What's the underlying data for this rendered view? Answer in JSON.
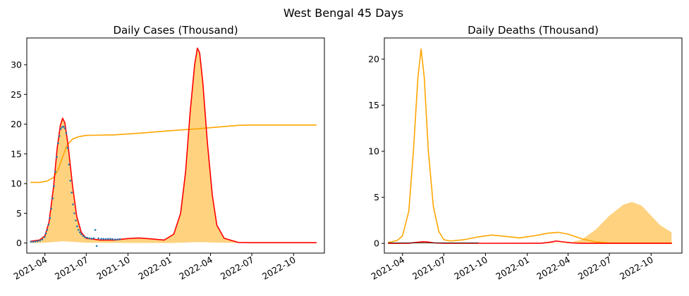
{
  "figure": {
    "suptitle": "West Bengal 45 Days"
  },
  "colors": {
    "model_cases": "#ff0000",
    "cumulative": "#ffa500",
    "fill": "#ffa500",
    "observed": "#1f77b4"
  },
  "chart_data": [
    {
      "type": "line",
      "title": "Daily Cases (Thousand)",
      "xlabel": "",
      "ylabel": "",
      "x_axis": "date",
      "xlim": [
        "2021-02-20",
        "2022-12-08"
      ],
      "ylim": [
        -1.7,
        34.5
      ],
      "xticks": [
        "2021-04-01",
        "2021-07-01",
        "2021-10-01",
        "2022-01-01",
        "2022-04-01",
        "2022-07-01",
        "2022-10-01"
      ],
      "xtick_labels": [
        "2021-04",
        "2021-07",
        "2021-10",
        "2022-01",
        "2022-04",
        "2022-07",
        "2022-10"
      ],
      "yticks": [
        0,
        5,
        10,
        15,
        20,
        25,
        30
      ],
      "ytick_labels": [
        "0",
        "5",
        "10",
        "15",
        "20",
        "25",
        "30"
      ],
      "grid": false,
      "series": [
        {
          "kind": "fill",
          "color": "#ffa500",
          "upper": [
            [
              "2021-03-01",
              0.3
            ],
            [
              "2021-03-20",
              0.5
            ],
            [
              "2021-04-01",
              1.2
            ],
            [
              "2021-04-10",
              3.5
            ],
            [
              "2021-04-20",
              9.5
            ],
            [
              "2021-04-28",
              16
            ],
            [
              "2021-05-05",
              19.8
            ],
            [
              "2021-05-10",
              21.0
            ],
            [
              "2021-05-15",
              20.2
            ],
            [
              "2021-05-22",
              16.5
            ],
            [
              "2021-06-01",
              9.5
            ],
            [
              "2021-06-10",
              4.5
            ],
            [
              "2021-06-20",
              1.8
            ],
            [
              "2021-07-01",
              0.8
            ],
            [
              "2021-08-01",
              0.5
            ],
            [
              "2021-09-01",
              0.5
            ],
            [
              "2021-10-01",
              0.75
            ],
            [
              "2021-10-25",
              0.85
            ],
            [
              "2021-11-20",
              0.7
            ],
            [
              "2021-12-20",
              0.5
            ],
            [
              "2022-01-10",
              1.5
            ],
            [
              "2022-01-25",
              5
            ],
            [
              "2022-02-05",
              12
            ],
            [
              "2022-02-15",
              22
            ],
            [
              "2022-02-25",
              30
            ],
            [
              "2022-03-03",
              32.8
            ],
            [
              "2022-03-08",
              32
            ],
            [
              "2022-03-15",
              27
            ],
            [
              "2022-03-25",
              17
            ],
            [
              "2022-04-05",
              8
            ],
            [
              "2022-04-15",
              3
            ],
            [
              "2022-05-01",
              0.8
            ],
            [
              "2022-06-01",
              0.1
            ],
            [
              "2022-07-01",
              0.05
            ],
            [
              "2022-11-20",
              0.05
            ]
          ],
          "lower": [
            [
              "2021-03-01",
              0.0
            ],
            [
              "2021-04-01",
              0.05
            ],
            [
              "2021-05-10",
              0.3
            ],
            [
              "2021-06-10",
              0.15
            ],
            [
              "2021-07-01",
              0.05
            ],
            [
              "2022-01-01",
              0.0
            ],
            [
              "2022-03-03",
              0.15
            ],
            [
              "2022-05-01",
              0.05
            ],
            [
              "2022-11-20",
              0.0
            ]
          ]
        },
        {
          "kind": "line",
          "color": "#ffa500",
          "points": [
            [
              "2021-03-01",
              10.2
            ],
            [
              "2021-03-20",
              10.2
            ],
            [
              "2021-04-05",
              10.4
            ],
            [
              "2021-04-20",
              11.0
            ],
            [
              "2021-05-01",
              12.5
            ],
            [
              "2021-05-10",
              14.5
            ],
            [
              "2021-05-20",
              16.5
            ],
            [
              "2021-06-01",
              17.5
            ],
            [
              "2021-06-15",
              17.9
            ],
            [
              "2021-07-01",
              18.1
            ],
            [
              "2021-09-01",
              18.2
            ],
            [
              "2021-11-01",
              18.5
            ],
            [
              "2022-01-01",
              18.9
            ],
            [
              "2022-03-01",
              19.2
            ],
            [
              "2022-04-15",
              19.5
            ],
            [
              "2022-06-01",
              19.8
            ],
            [
              "2022-07-01",
              19.85
            ],
            [
              "2022-11-20",
              19.85
            ]
          ]
        },
        {
          "kind": "line",
          "color": "#ff0000",
          "points": [
            [
              "2021-03-01",
              0.3
            ],
            [
              "2021-03-20",
              0.5
            ],
            [
              "2021-04-01",
              1.2
            ],
            [
              "2021-04-10",
              3.5
            ],
            [
              "2021-04-20",
              9.5
            ],
            [
              "2021-04-28",
              16
            ],
            [
              "2021-05-05",
              19.8
            ],
            [
              "2021-05-10",
              21.0
            ],
            [
              "2021-05-15",
              20.2
            ],
            [
              "2021-05-22",
              16.5
            ],
            [
              "2021-06-01",
              9.5
            ],
            [
              "2021-06-10",
              4.5
            ],
            [
              "2021-06-20",
              1.8
            ],
            [
              "2021-07-01",
              0.8
            ],
            [
              "2021-08-01",
              0.5
            ],
            [
              "2021-09-01",
              0.5
            ],
            [
              "2021-10-01",
              0.75
            ],
            [
              "2021-10-25",
              0.85
            ],
            [
              "2021-11-20",
              0.7
            ],
            [
              "2021-12-20",
              0.5
            ],
            [
              "2022-01-10",
              1.5
            ],
            [
              "2022-01-25",
              5
            ],
            [
              "2022-02-05",
              12
            ],
            [
              "2022-02-15",
              22
            ],
            [
              "2022-02-25",
              30
            ],
            [
              "2022-03-03",
              32.8
            ],
            [
              "2022-03-08",
              32
            ],
            [
              "2022-03-15",
              27
            ],
            [
              "2022-03-25",
              17
            ],
            [
              "2022-04-05",
              8
            ],
            [
              "2022-04-15",
              3
            ],
            [
              "2022-05-01",
              0.8
            ],
            [
              "2022-06-01",
              0.1
            ],
            [
              "2022-07-01",
              0.05
            ],
            [
              "2022-11-20",
              0.05
            ]
          ]
        },
        {
          "kind": "scatter",
          "color": "#1f77b4",
          "points": [
            [
              "2021-03-01",
              0.2
            ],
            [
              "2021-03-06",
              0.2
            ],
            [
              "2021-03-11",
              0.25
            ],
            [
              "2021-03-16",
              0.3
            ],
            [
              "2021-03-21",
              0.4
            ],
            [
              "2021-03-26",
              0.6
            ],
            [
              "2021-03-31",
              1.0
            ],
            [
              "2021-04-03",
              1.6
            ],
            [
              "2021-04-06",
              2.2
            ],
            [
              "2021-04-09",
              3.1
            ],
            [
              "2021-04-12",
              4.2
            ],
            [
              "2021-04-15",
              5.8
            ],
            [
              "2021-04-18",
              7.5
            ],
            [
              "2021-04-21",
              9.6
            ],
            [
              "2021-04-24",
              12.0
            ],
            [
              "2021-04-27",
              14.5
            ],
            [
              "2021-04-30",
              16.8
            ],
            [
              "2021-05-03",
              18.0
            ],
            [
              "2021-05-06",
              19.2
            ],
            [
              "2021-05-09",
              19.5
            ],
            [
              "2021-05-12",
              19.6
            ],
            [
              "2021-05-15",
              19.3
            ],
            [
              "2021-05-18",
              18.5
            ],
            [
              "2021-05-21",
              16.0
            ],
            [
              "2021-05-24",
              13.2
            ],
            [
              "2021-05-27",
              10.5
            ],
            [
              "2021-05-30",
              8.5
            ],
            [
              "2021-06-02",
              6.5
            ],
            [
              "2021-06-05",
              5.0
            ],
            [
              "2021-06-08",
              3.8
            ],
            [
              "2021-06-11",
              2.8
            ],
            [
              "2021-06-14",
              2.2
            ],
            [
              "2021-06-17",
              1.8
            ],
            [
              "2021-06-20",
              1.5
            ],
            [
              "2021-06-24",
              1.2
            ],
            [
              "2021-06-28",
              1.0
            ],
            [
              "2021-07-03",
              0.9
            ],
            [
              "2021-07-08",
              0.8
            ],
            [
              "2021-07-13",
              0.75
            ],
            [
              "2021-07-18",
              0.8
            ],
            [
              "2021-07-21",
              2.2
            ],
            [
              "2021-07-24",
              -0.5
            ],
            [
              "2021-07-28",
              0.8
            ],
            [
              "2021-08-03",
              0.7
            ],
            [
              "2021-08-08",
              0.7
            ],
            [
              "2021-08-13",
              0.65
            ],
            [
              "2021-08-18",
              0.7
            ],
            [
              "2021-08-23",
              0.7
            ],
            [
              "2021-08-28",
              0.65
            ],
            [
              "2021-09-03",
              0.6
            ],
            [
              "2021-09-08",
              0.6
            ],
            [
              "2021-09-13",
              0.65
            ]
          ]
        }
      ]
    },
    {
      "type": "line",
      "title": "Daily Deaths (Thousand)",
      "xlabel": "",
      "ylabel": "",
      "x_axis": "date",
      "xlim": [
        "2021-02-20",
        "2022-12-08"
      ],
      "ylim": [
        -1.06,
        22.3
      ],
      "xticks": [
        "2021-04-01",
        "2021-07-01",
        "2021-10-01",
        "2022-01-01",
        "2022-04-01",
        "2022-07-01",
        "2022-10-01"
      ],
      "xtick_labels": [
        "2021-04",
        "2021-07",
        "2021-10",
        "2022-01",
        "2022-04",
        "2022-07",
        "2022-10"
      ],
      "yticks": [
        0,
        5,
        10,
        15,
        20
      ],
      "ytick_labels": [
        "0",
        "5",
        "10",
        "15",
        "20"
      ],
      "grid": false,
      "series": [
        {
          "kind": "fill",
          "color": "#ffa500",
          "upper": [
            [
              "2021-03-01",
              0.05
            ],
            [
              "2022-04-01",
              0.05
            ],
            [
              "2022-05-01",
              0.4
            ],
            [
              "2022-06-01",
              1.5
            ],
            [
              "2022-07-01",
              3.0
            ],
            [
              "2022-08-01",
              4.2
            ],
            [
              "2022-08-20",
              4.5
            ],
            [
              "2022-09-10",
              4.1
            ],
            [
              "2022-10-01",
              3.0
            ],
            [
              "2022-10-20",
              2.0
            ],
            [
              "2022-11-15",
              1.2
            ]
          ],
          "lower": [
            [
              "2021-03-01",
              0.0
            ],
            [
              "2022-11-15",
              0.0
            ]
          ]
        },
        {
          "kind": "line",
          "color": "#ffa500",
          "points": [
            [
              "2021-03-01",
              0.1
            ],
            [
              "2021-03-20",
              0.3
            ],
            [
              "2021-04-01",
              0.8
            ],
            [
              "2021-04-15",
              3.5
            ],
            [
              "2021-04-25",
              10
            ],
            [
              "2021-05-05",
              18
            ],
            [
              "2021-05-12",
              21.1
            ],
            [
              "2021-05-19",
              18
            ],
            [
              "2021-05-28",
              10
            ],
            [
              "2021-06-08",
              4
            ],
            [
              "2021-06-20",
              1.3
            ],
            [
              "2021-07-01",
              0.4
            ],
            [
              "2021-07-15",
              0.25
            ],
            [
              "2021-08-15",
              0.4
            ],
            [
              "2021-09-15",
              0.7
            ],
            [
              "2021-10-15",
              0.9
            ],
            [
              "2021-11-15",
              0.75
            ],
            [
              "2021-12-15",
              0.6
            ],
            [
              "2022-01-15",
              0.8
            ],
            [
              "2022-02-15",
              1.1
            ],
            [
              "2022-03-10",
              1.2
            ],
            [
              "2022-04-01",
              1.0
            ],
            [
              "2022-05-01",
              0.5
            ],
            [
              "2022-06-01",
              0.15
            ],
            [
              "2022-07-01",
              0.05
            ],
            [
              "2022-11-15",
              0.05
            ]
          ]
        },
        {
          "kind": "line",
          "color": "#ff0000",
          "points": [
            [
              "2021-03-01",
              0.0
            ],
            [
              "2021-04-15",
              0.02
            ],
            [
              "2021-05-05",
              0.12
            ],
            [
              "2021-05-15",
              0.18
            ],
            [
              "2021-05-25",
              0.15
            ],
            [
              "2021-06-10",
              0.05
            ],
            [
              "2021-07-01",
              0.02
            ],
            [
              "2021-10-01",
              0.01
            ],
            [
              "2022-02-01",
              0.02
            ],
            [
              "2022-02-25",
              0.15
            ],
            [
              "2022-03-05",
              0.25
            ],
            [
              "2022-03-15",
              0.2
            ],
            [
              "2022-04-10",
              0.05
            ],
            [
              "2022-05-01",
              0.0
            ],
            [
              "2022-11-15",
              0.0
            ]
          ]
        },
        {
          "kind": "line",
          "color": "#000000",
          "width": 0.8,
          "points": [
            [
              "2021-03-01",
              0.05
            ],
            [
              "2021-09-15",
              0.05
            ]
          ]
        }
      ]
    }
  ]
}
